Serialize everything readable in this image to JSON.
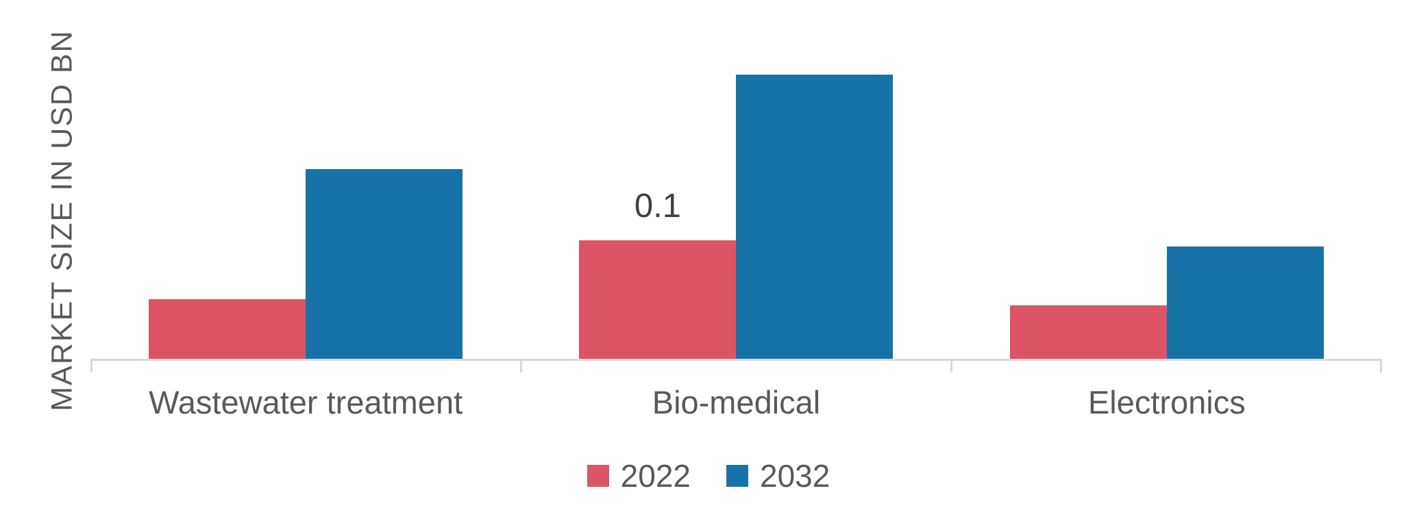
{
  "chart_data": {
    "type": "bar",
    "title": "",
    "categories": [
      "Wastewater treatment",
      "Bio-medical",
      "Electronics"
    ],
    "series": [
      {
        "name": "2022",
        "color": "#dd5467",
        "values": [
          0.05,
          0.1,
          0.045
        ]
      },
      {
        "name": "2032",
        "color": "#1773a7",
        "values": [
          0.16,
          0.24,
          0.095
        ]
      }
    ],
    "data_labels": [
      {
        "series": "2022",
        "category": "Bio-medical",
        "text": "0.1"
      }
    ],
    "xlabel": "",
    "ylabel": "MARKET SIZE IN USD BN",
    "ylim": [
      0,
      0.2566
    ],
    "grid": false,
    "y_axis_ticks_visible": false,
    "legend_position": "bottom"
  },
  "colors": {
    "axis": "#d9d9d9",
    "category_text": "#595959",
    "axis_title_text": "#595959",
    "data_label_text": "#404040",
    "background": "#ffffff"
  }
}
